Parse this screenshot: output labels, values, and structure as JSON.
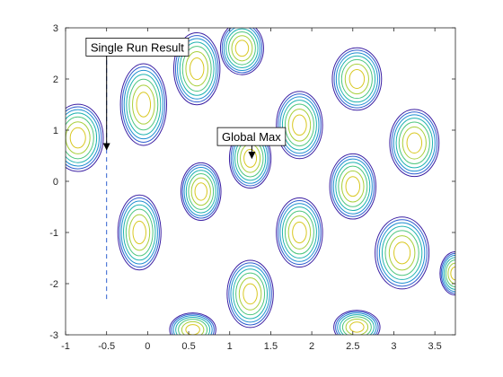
{
  "chart_data": {
    "type": "contour",
    "title": "",
    "xlabel": "",
    "ylabel": "",
    "xlim": [
      -1,
      3.75
    ],
    "ylim": [
      -3,
      3
    ],
    "xticks": [
      -1,
      -0.5,
      0,
      0.5,
      1,
      1.5,
      2,
      2.5,
      3,
      3.5
    ],
    "xtick_labels": [
      "-1",
      "-0.5",
      "0",
      "0.5",
      "1",
      "1.5",
      "2",
      "2.5",
      "3",
      "3.5"
    ],
    "yticks": [
      -3,
      -2,
      -1,
      0,
      1,
      2,
      3
    ],
    "ytick_labels": [
      "-3",
      "-2",
      "-1",
      "0",
      "1",
      "2",
      "3"
    ],
    "grid": false,
    "colormap": [
      "#3b1fa3",
      "#2f5fd0",
      "#1f8fd0",
      "#1fb3b0",
      "#4fc77f",
      "#a8cf3a",
      "#d9c821"
    ],
    "peaks": [
      {
        "x": -0.85,
        "y": 0.85,
        "rx": 0.33,
        "ry": 0.7
      },
      {
        "x": -0.05,
        "y": 1.5,
        "rx": 0.3,
        "ry": 0.85
      },
      {
        "x": 0.6,
        "y": 2.2,
        "rx": 0.3,
        "ry": 0.75
      },
      {
        "x": 1.15,
        "y": 2.6,
        "rx": 0.28,
        "ry": 0.55
      },
      {
        "x": 0.65,
        "y": -0.2,
        "rx": 0.26,
        "ry": 0.6
      },
      {
        "x": 1.25,
        "y": 0.45,
        "rx": 0.27,
        "ry": 0.62
      },
      {
        "x": 1.85,
        "y": 1.1,
        "rx": 0.3,
        "ry": 0.7
      },
      {
        "x": 2.55,
        "y": 2.0,
        "rx": 0.32,
        "ry": 0.65
      },
      {
        "x": 3.25,
        "y": 0.75,
        "rx": 0.32,
        "ry": 0.7
      },
      {
        "x": 2.5,
        "y": -0.1,
        "rx": 0.3,
        "ry": 0.68
      },
      {
        "x": -0.1,
        "y": -1.0,
        "rx": 0.28,
        "ry": 0.78
      },
      {
        "x": 1.85,
        "y": -1.0,
        "rx": 0.3,
        "ry": 0.72
      },
      {
        "x": 1.25,
        "y": -2.2,
        "rx": 0.3,
        "ry": 0.7
      },
      {
        "x": 3.1,
        "y": -1.4,
        "rx": 0.35,
        "ry": 0.75
      },
      {
        "x": 0.55,
        "y": -2.9,
        "rx": 0.3,
        "ry": 0.35
      },
      {
        "x": 2.55,
        "y": -2.85,
        "rx": 0.3,
        "ry": 0.35
      },
      {
        "x": 3.75,
        "y": -1.8,
        "rx": 0.2,
        "ry": 0.45
      }
    ],
    "levels": [
      0.12,
      0.25,
      0.38,
      0.52,
      0.66,
      0.8,
      0.92
    ],
    "path_line": {
      "x": -0.5,
      "y_from": -2.3,
      "y_to": 2.6,
      "style": "dashed"
    },
    "annotations": [
      {
        "text": "Single Run Result",
        "target": {
          "x": -0.5,
          "y": 0.62
        },
        "box_at": {
          "x": -0.75,
          "y": 2.8
        }
      },
      {
        "text": "Global Max",
        "target": {
          "x": 1.27,
          "y": 0.45
        },
        "box_at": {
          "x": 0.85,
          "y": 1.05
        }
      }
    ]
  }
}
